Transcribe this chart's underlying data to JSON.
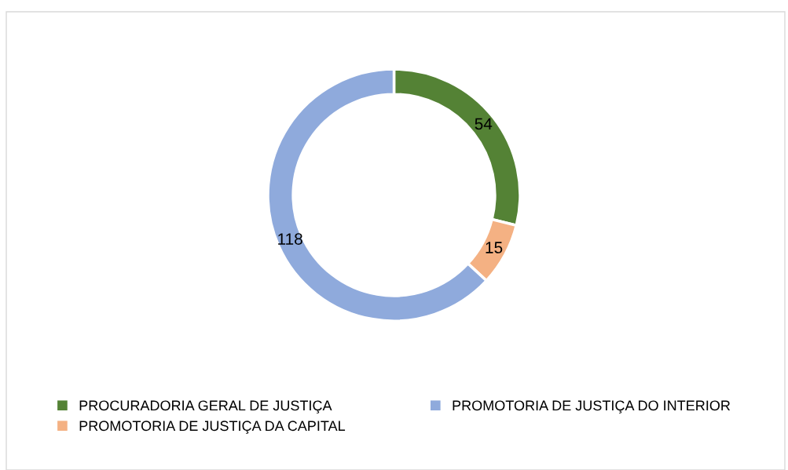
{
  "chart_data": {
    "type": "donut",
    "categories": [
      "PROCURADORIA GERAL DE JUSTIÇA",
      "PROMOTORIA DE JUSTIÇA DA CAPITAL",
      "PROMOTORIA DE JUSTIÇA DO INTERIOR"
    ],
    "values": [
      54,
      15,
      118
    ],
    "colors": [
      "#548235",
      "#f4b183",
      "#8faadc"
    ],
    "data_labels": true,
    "legend": "bottom"
  }
}
